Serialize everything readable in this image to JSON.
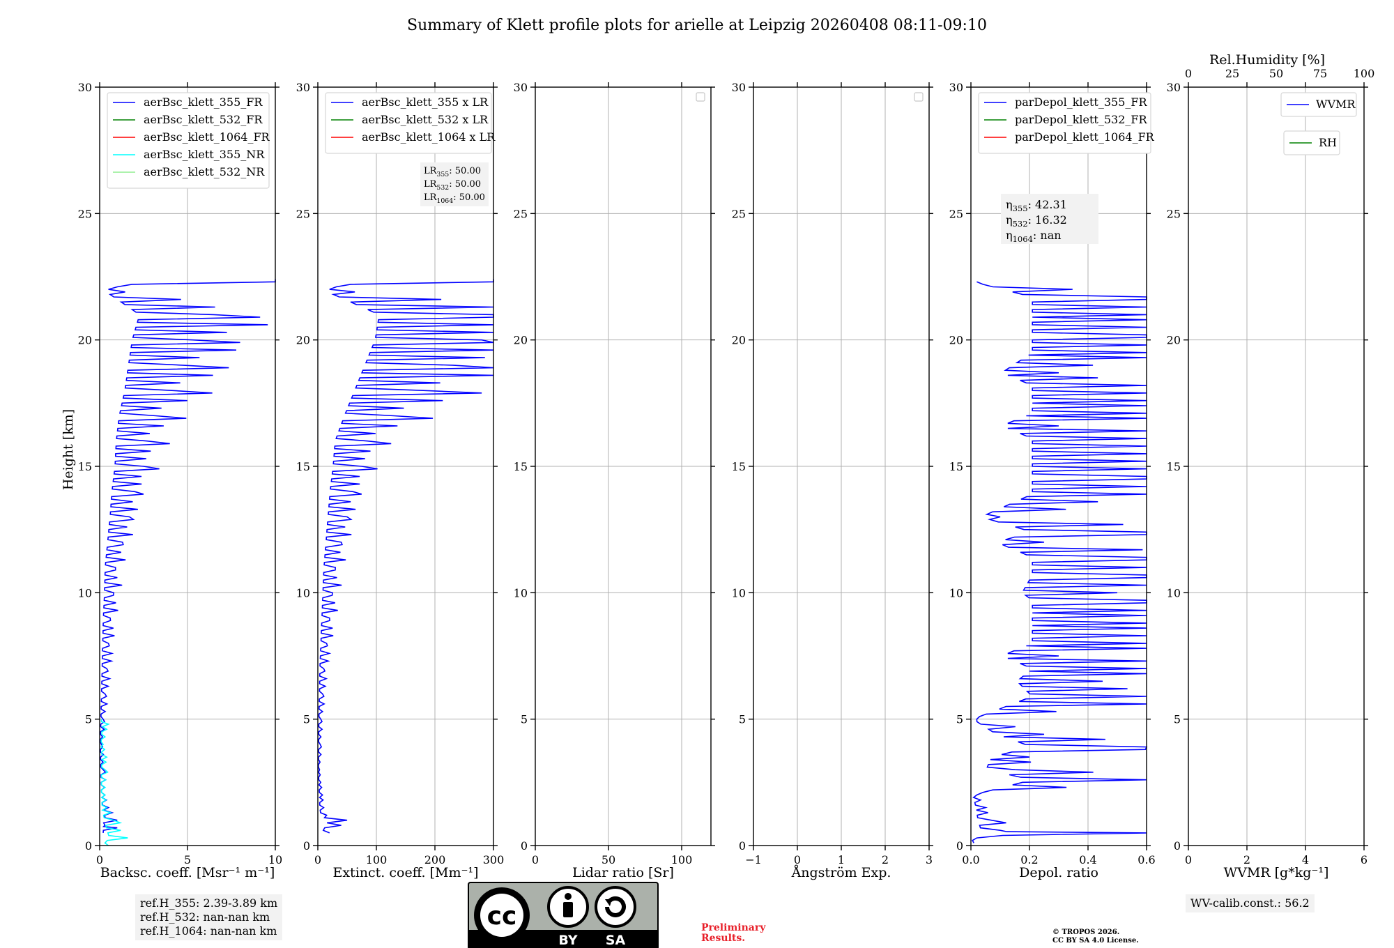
{
  "title": "Summary of Klett profile plots for arielle at Leipzig 20260408 08:11-09:10",
  "colors": {
    "blue": "#0000ff",
    "green": "#008000",
    "red": "#ff0000",
    "cyan": "#00ffff",
    "lightgreen": "#90ee90",
    "grid": "#b0b0b0",
    "annot_bg": "#f2f2f2"
  },
  "chart_data": [
    {
      "type": "line",
      "id": "backscatter",
      "xlabel": "Backsc. coeff. [Msr⁻¹ m⁻¹]",
      "ylabel": "Height [km]",
      "xlim": [
        0,
        10
      ],
      "ylim": [
        0,
        30
      ],
      "xticks": [
        "0",
        "5",
        "10"
      ],
      "yticks": [
        "0",
        "5",
        "10",
        "15",
        "20",
        "25",
        "30"
      ],
      "legend": [
        "aerBsc_klett_355_FR",
        "aerBsc_klett_532_FR",
        "aerBsc_klett_1064_FR",
        "aerBsc_klett_355_NR",
        "aerBsc_klett_532_NR"
      ],
      "series": [
        {
          "name": "aerBsc_klett_355_FR",
          "color": "#0000ff",
          "profile": [
            [
              0.5,
              0.2
            ],
            [
              0.7,
              1.0
            ],
            [
              0.8,
              0.3
            ],
            [
              1.0,
              1.0
            ],
            [
              1.5,
              0.5
            ],
            [
              2.0,
              0.3
            ],
            [
              3.0,
              0.2
            ],
            [
              4.0,
              0.1
            ],
            [
              5.0,
              0.2
            ],
            [
              6.0,
              0.3
            ],
            [
              7.0,
              0.4
            ],
            [
              8.0,
              0.5
            ],
            [
              9.0,
              0.6
            ],
            [
              10.0,
              0.8
            ],
            [
              11.0,
              0.9
            ],
            [
              12.0,
              1.3
            ],
            [
              13.0,
              1.7
            ],
            [
              14.0,
              2.0
            ],
            [
              15.0,
              2.5
            ],
            [
              16.0,
              2.7
            ],
            [
              17.0,
              3.2
            ],
            [
              18.0,
              4.1
            ],
            [
              19.0,
              4.7
            ],
            [
              20.0,
              5.3
            ],
            [
              21.0,
              6.5
            ],
            [
              22.0,
              0.5
            ],
            [
              22.4,
              10.0
            ]
          ]
        },
        {
          "name": "aerBsc_klett_355_NR",
          "color": "#00ffff",
          "profile": [
            [
              0.0,
              0.5
            ],
            [
              0.3,
              1.6
            ],
            [
              0.6,
              1.2
            ],
            [
              1.0,
              0.8
            ],
            [
              1.5,
              0.4
            ],
            [
              2.0,
              0.3
            ],
            [
              3.0,
              0.3
            ],
            [
              3.5,
              0.4
            ],
            [
              4.0,
              0.2
            ],
            [
              4.6,
              0.4
            ],
            [
              4.8,
              0.5
            ],
            [
              5.0,
              0.1
            ]
          ]
        }
      ]
    },
    {
      "type": "line",
      "id": "extinction",
      "xlabel": "Extinct. coeff. [Mm⁻¹]",
      "ylabel": "",
      "xlim": [
        0,
        300
      ],
      "ylim": [
        0,
        30
      ],
      "xticks": [
        "0",
        "100",
        "200",
        "300"
      ],
      "yticks": [
        "0",
        "5",
        "10",
        "15",
        "20",
        "25",
        "30"
      ],
      "legend": [
        "aerBsc_klett_355 x LR",
        "aerBsc_klett_532 x LR",
        "aerBsc_klett_1064 x LR"
      ],
      "annotation": [
        "LR355: 50.00",
        "LR532: 50.00",
        "LR1064: 50.00"
      ],
      "series": [
        {
          "name": "aerBsc_klett_355 x LR",
          "color": "#0000ff",
          "profile": [
            [
              0.5,
              20
            ],
            [
              0.8,
              40
            ],
            [
              1.0,
              50
            ],
            [
              1.2,
              15
            ],
            [
              1.5,
              10
            ],
            [
              2.0,
              8
            ],
            [
              2.5,
              5
            ],
            [
              3.0,
              3
            ],
            [
              4.0,
              4
            ],
            [
              5.0,
              5
            ],
            [
              6.0,
              8
            ],
            [
              7.0,
              10
            ],
            [
              8.0,
              15
            ],
            [
              9.0,
              20
            ],
            [
              10.0,
              25
            ],
            [
              11.0,
              30
            ],
            [
              12.0,
              40
            ],
            [
              13.0,
              50
            ],
            [
              14.0,
              60
            ],
            [
              15.0,
              75
            ],
            [
              16.0,
              85
            ],
            [
              17.0,
              130
            ],
            [
              18.0,
              180
            ],
            [
              19.0,
              230
            ],
            [
              20.0,
              280
            ],
            [
              21.0,
              300
            ],
            [
              22.0,
              20
            ],
            [
              22.4,
              300
            ]
          ]
        }
      ]
    },
    {
      "type": "line",
      "id": "lidar_ratio",
      "xlabel": "Lidar ratio [Sr]",
      "ylabel": "",
      "xlim": [
        0,
        120
      ],
      "ylim": [
        0,
        30
      ],
      "xticks": [
        "0",
        "50",
        "100"
      ],
      "yticks": [
        "0",
        "5",
        "10",
        "15",
        "20",
        "25",
        "30"
      ],
      "legend": [],
      "series": []
    },
    {
      "type": "line",
      "id": "angstrom",
      "xlabel": "Ångström Exp.",
      "ylabel": "",
      "xlim": [
        -1,
        3
      ],
      "ylim": [
        0,
        30
      ],
      "xticks": [
        "−1",
        "0",
        "1",
        "2",
        "3"
      ],
      "yticks": [
        "0",
        "5",
        "10",
        "15",
        "20",
        "25",
        "30"
      ],
      "legend": [],
      "series": []
    },
    {
      "type": "line",
      "id": "depol",
      "xlabel": "Depol. ratio",
      "ylabel": "",
      "xlim": [
        0,
        0.6
      ],
      "ylim": [
        0,
        30
      ],
      "xticks": [
        "0.0",
        "0.2",
        "0.4",
        "0.6"
      ],
      "yticks": [
        "0",
        "5",
        "10",
        "15",
        "20",
        "25",
        "30"
      ],
      "legend": [
        "parDepol_klett_355_FR",
        "parDepol_klett_532_FR",
        "parDepol_klett_1064_FR"
      ],
      "annotation": [
        "η355: 42.31",
        "η532: 16.32",
        "η1064: nan"
      ],
      "series": [
        {
          "name": "parDepol_klett_355_FR",
          "color": "#0000ff",
          "profile": [
            [
              0.1,
              0.01
            ],
            [
              0.3,
              0.02
            ],
            [
              0.5,
              0.6
            ],
            [
              0.6,
              0.1
            ],
            [
              1.0,
              0.07
            ],
            [
              1.5,
              0.05
            ],
            [
              2.0,
              0.02
            ],
            [
              2.6,
              0.6
            ],
            [
              3.0,
              0.15
            ],
            [
              3.5,
              0.2
            ],
            [
              3.9,
              0.6
            ],
            [
              4.4,
              0.25
            ],
            [
              5.0,
              0.02
            ],
            [
              5.9,
              0.6
            ],
            [
              6.5,
              0.45
            ],
            [
              7.0,
              0.6
            ],
            [
              7.5,
              0.3
            ],
            [
              8.0,
              0.6
            ],
            [
              8.8,
              0.6
            ],
            [
              9.3,
              0.6
            ],
            [
              9.7,
              0.6
            ],
            [
              10.0,
              0.5
            ],
            [
              10.7,
              0.6
            ],
            [
              11.4,
              0.6
            ],
            [
              12.0,
              0.25
            ],
            [
              12.4,
              0.6
            ],
            [
              13.0,
              0.1
            ],
            [
              13.9,
              0.6
            ],
            [
              14.6,
              0.6
            ],
            [
              15.2,
              0.6
            ],
            [
              15.8,
              0.6
            ],
            [
              16.1,
              0.6
            ],
            [
              16.6,
              0.3
            ],
            [
              17.1,
              0.6
            ],
            [
              17.6,
              0.6
            ],
            [
              18.2,
              0.6
            ],
            [
              18.7,
              0.3
            ],
            [
              19.5,
              0.6
            ],
            [
              20.2,
              0.6
            ],
            [
              21.0,
              0.6
            ],
            [
              21.7,
              0.6
            ],
            [
              22.3,
              0.02
            ]
          ]
        }
      ]
    },
    {
      "type": "line",
      "id": "wvmr",
      "xlabel": "WVMR [g*kg⁻¹]",
      "ylabel": "",
      "xlim": [
        0,
        6
      ],
      "ylim": [
        0,
        30
      ],
      "xticks": [
        "0",
        "2",
        "4",
        "6"
      ],
      "yticks": [
        "0",
        "5",
        "10",
        "15",
        "20",
        "25",
        "30"
      ],
      "top_xlabel": "Rel.Humidity [%]",
      "top_xlim": [
        0,
        100
      ],
      "top_xticks": [
        "0",
        "25",
        "50",
        "75",
        "100"
      ],
      "legend": [
        "WVMR",
        "RH"
      ],
      "series": []
    }
  ],
  "ref_heights": [
    "ref.H_355: 2.39-3.89 km",
    "ref.H_532: nan-nan km",
    "ref.H_1064: nan-nan km"
  ],
  "wv_calib": "WV-calib.const.: 56.2",
  "license_logo": {
    "cc": "cc",
    "by": "BY",
    "sa": "SA"
  },
  "preliminary": [
    "Preliminary",
    "Results."
  ],
  "copyright": [
    "© TROPOS 2026.",
    "CC BY SA 4.0 License."
  ]
}
